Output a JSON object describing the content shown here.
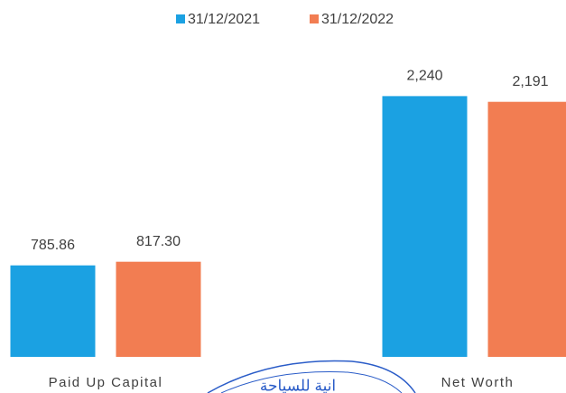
{
  "chart_data": {
    "type": "bar",
    "categories": [
      "Paid Up Capital",
      "Net Worth"
    ],
    "series": [
      {
        "name": "31/12/2021",
        "color": "#1ba1e2",
        "values": [
          785.86,
          2240
        ],
        "value_labels": [
          "785.86",
          "2,240"
        ]
      },
      {
        "name": "31/12/2022",
        "color": "#f27d52",
        "values": [
          817.3,
          2191
        ],
        "value_labels": [
          "817.30",
          "2,191"
        ]
      }
    ],
    "ylim": [
      0,
      2600
    ],
    "stamp_text": "انية للسياحة"
  }
}
